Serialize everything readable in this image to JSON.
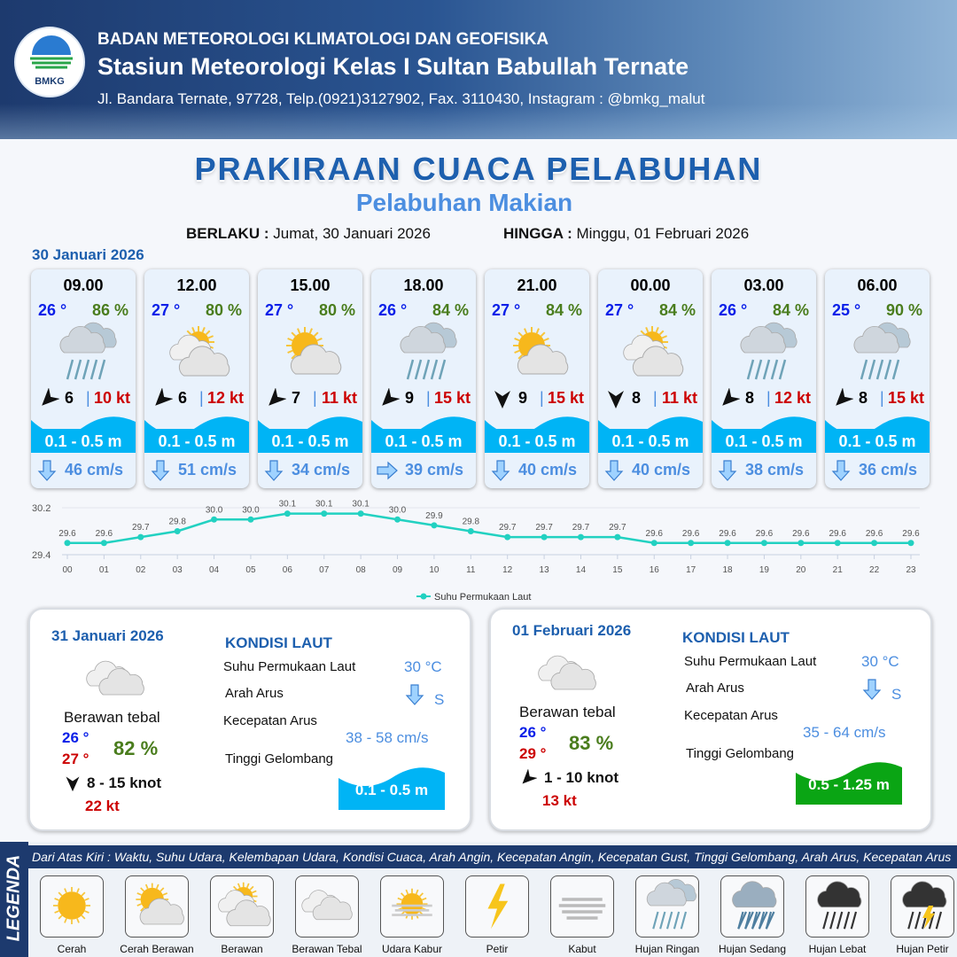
{
  "header": {
    "org": "BADAN METEOROLOGI KLIMATOLOGI DAN GEOFISIKA",
    "station": "Stasiun Meteorologi Kelas I Sultan Babullah Ternate",
    "address": "Jl. Bandara Ternate, 97728, Telp.(0921)3127902, Fax. 3110430, Instagram : @bmkg_malut",
    "logo_text": "BMKG"
  },
  "title": "PRAKIRAAN CUACA PELABUHAN",
  "subtitle": "Pelabuhan Makian",
  "validity": {
    "from_label": "BERLAKU :",
    "from": "Jumat, 30 Januari 2026",
    "to_label": "HINGGA :",
    "to": "Minggu, 01 Februari 2026"
  },
  "day0": "30 Januari 2026",
  "colors": {
    "temp": "#0a1fe8",
    "humidity": "#4a7d1d",
    "gust": "#cc0000",
    "wave_low": "#00b4f5",
    "wave_mid": "#0aa514",
    "title": "#1d5fae",
    "sst_line": "#22d1c1"
  },
  "cards": [
    {
      "time": "09.00",
      "temp": "26 °",
      "hum": "86 %",
      "icon": "hujan-ringan",
      "wind_arrow": "southwest",
      "wind": "6",
      "gust": "10 kt",
      "wave": "0.1 - 0.5 m",
      "current_arrow": "down",
      "current": "46 cm/s"
    },
    {
      "time": "12.00",
      "temp": "27 °",
      "hum": "80 %",
      "icon": "berawan",
      "wind_arrow": "southwest",
      "wind": "6",
      "gust": "12 kt",
      "wave": "0.1 - 0.5 m",
      "current_arrow": "down",
      "current": "51 cm/s"
    },
    {
      "time": "15.00",
      "temp": "27 °",
      "hum": "80 %",
      "icon": "cerah-berawan",
      "wind_arrow": "southwest",
      "wind": "7",
      "gust": "11 kt",
      "wave": "0.1 - 0.5 m",
      "current_arrow": "down",
      "current": "34 cm/s"
    },
    {
      "time": "18.00",
      "temp": "26 °",
      "hum": "84 %",
      "icon": "hujan-ringan",
      "wind_arrow": "southwest",
      "wind": "9",
      "gust": "15 kt",
      "wave": "0.1 - 0.5 m",
      "current_arrow": "right",
      "current": "39 cm/s"
    },
    {
      "time": "21.00",
      "temp": "27 °",
      "hum": "84 %",
      "icon": "cerah-berawan",
      "wind_arrow": "south",
      "wind": "9",
      "gust": "15 kt",
      "wave": "0.1 - 0.5 m",
      "current_arrow": "down",
      "current": "40 cm/s"
    },
    {
      "time": "00.00",
      "temp": "27 °",
      "hum": "84 %",
      "icon": "berawan",
      "wind_arrow": "south",
      "wind": "8",
      "gust": "11 kt",
      "wave": "0.1 - 0.5 m",
      "current_arrow": "down",
      "current": "40 cm/s"
    },
    {
      "time": "03.00",
      "temp": "26 °",
      "hum": "84 %",
      "icon": "hujan-ringan",
      "wind_arrow": "southwest",
      "wind": "8",
      "gust": "12 kt",
      "wave": "0.1 - 0.5 m",
      "current_arrow": "down",
      "current": "38 cm/s"
    },
    {
      "time": "06.00",
      "temp": "25 °",
      "hum": "90 %",
      "icon": "hujan-ringan",
      "wind_arrow": "southwest",
      "wind": "8",
      "gust": "15 kt",
      "wave": "0.1 - 0.5 m",
      "current_arrow": "down",
      "current": "36 cm/s"
    }
  ],
  "chart_data": {
    "type": "line",
    "x": [
      "00",
      "01",
      "02",
      "03",
      "04",
      "05",
      "06",
      "07",
      "08",
      "09",
      "10",
      "11",
      "12",
      "13",
      "14",
      "15",
      "16",
      "17",
      "18",
      "19",
      "20",
      "21",
      "22",
      "23"
    ],
    "series": [
      {
        "name": "Suhu Permukaan Laut",
        "values": [
          29.6,
          29.6,
          29.7,
          29.8,
          30.0,
          30.0,
          30.1,
          30.1,
          30.1,
          30.0,
          29.9,
          29.8,
          29.7,
          29.7,
          29.7,
          29.7,
          29.6,
          29.6,
          29.6,
          29.6,
          29.6,
          29.6,
          29.6,
          29.6
        ]
      }
    ],
    "ylim": [
      29.4,
      30.2
    ],
    "yticks": [
      "29.4",
      "30.2"
    ],
    "grid": true,
    "legend": "bottom"
  },
  "days": [
    {
      "date": "31 Januari 2026",
      "cond": "Berawan tebal",
      "tmin": "26 °",
      "tmax": "27 °",
      "hum": "82 %",
      "wind_arrow": "south",
      "wind": "8  - 15 knot",
      "gust": "22 kt",
      "kondisi": "KONDISI LAUT",
      "sst_label": "Suhu Permukaan Laut",
      "sst": "30 °C",
      "dir_label": "Arah Arus",
      "dir": "S",
      "speed_label": "Kecepatan Arus",
      "speed": "38  - 58 cm/s",
      "wave_label": "Tinggi Gelombang",
      "wave": "0.1 - 0.5 m",
      "wave_color": "#00b4f5"
    },
    {
      "date": "01 Februari 2026",
      "cond": "Berawan tebal",
      "tmin": "26 °",
      "tmax": "29 °",
      "hum": "83 %",
      "wind_arrow": "southwest",
      "wind": "1  - 10 knot",
      "gust": "13 kt",
      "kondisi": "KONDISI LAUT",
      "sst_label": "Suhu Permukaan Laut",
      "sst": "30 °C",
      "dir_label": "Arah Arus",
      "dir": "S",
      "speed_label": "Kecepatan Arus",
      "speed": "35  - 64 cm/s",
      "wave_label": "Tinggi Gelombang",
      "wave": "0.5 - 1.25 m",
      "wave_color": "#0aa514"
    }
  ],
  "legend": {
    "title": "LEGENDA",
    "description": "Dari Atas Kiri : Waktu, Suhu Udara, Kelembapan Udara, Kondisi Cuaca, Arah Angin, Kecepatan Angin, Kecepatan Gust, Tinggi Gelombang, Arah Arus, Kecepatan Arus",
    "items": [
      {
        "label": "Cerah",
        "icon": "cerah"
      },
      {
        "label": "Cerah Berawan",
        "icon": "cerah-berawan"
      },
      {
        "label": "Berawan",
        "icon": "berawan"
      },
      {
        "label": "Berawan Tebal",
        "icon": "berawan-tebal"
      },
      {
        "label": "Udara Kabur",
        "icon": "udara-kabur"
      },
      {
        "label": "Petir",
        "icon": "petir"
      },
      {
        "label": "Kabut",
        "icon": "kabut"
      },
      {
        "label": "Hujan Ringan",
        "icon": "hujan-ringan"
      },
      {
        "label": "Hujan Sedang",
        "icon": "hujan-sedang"
      },
      {
        "label": "Hujan Lebat",
        "icon": "hujan-lebat"
      },
      {
        "label": "Hujan Petir",
        "icon": "hujan-petir"
      }
    ]
  }
}
